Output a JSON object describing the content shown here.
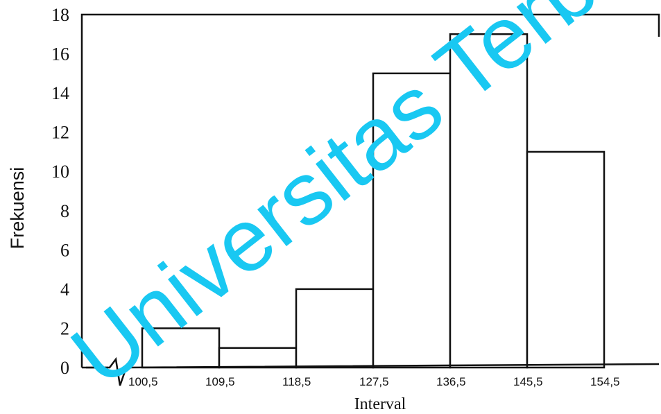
{
  "chart_data": {
    "type": "bar",
    "title": "",
    "xlabel": "Interval",
    "ylabel": "Frekuensi",
    "ylim": [
      0,
      18
    ],
    "yticks": [
      "0",
      "2",
      "4",
      "6",
      "8",
      "10",
      "12",
      "14",
      "16",
      "18"
    ],
    "xticks": [
      "100,5",
      "109,5",
      "118,5",
      "127,5",
      "136,5",
      "145,5",
      "154,5"
    ],
    "bins": [
      {
        "from": 100.5,
        "to": 109.5,
        "value": 2
      },
      {
        "from": 109.5,
        "to": 118.5,
        "value": 1
      },
      {
        "from": 118.5,
        "to": 127.5,
        "value": 4
      },
      {
        "from": 127.5,
        "to": 136.5,
        "value": 15
      },
      {
        "from": 136.5,
        "to": 145.5,
        "value": 17
      },
      {
        "from": 145.5,
        "to": 154.5,
        "value": 11
      }
    ],
    "axis_break": true,
    "grid": false,
    "legend": "none"
  },
  "watermark": "Universitas Terbuka"
}
